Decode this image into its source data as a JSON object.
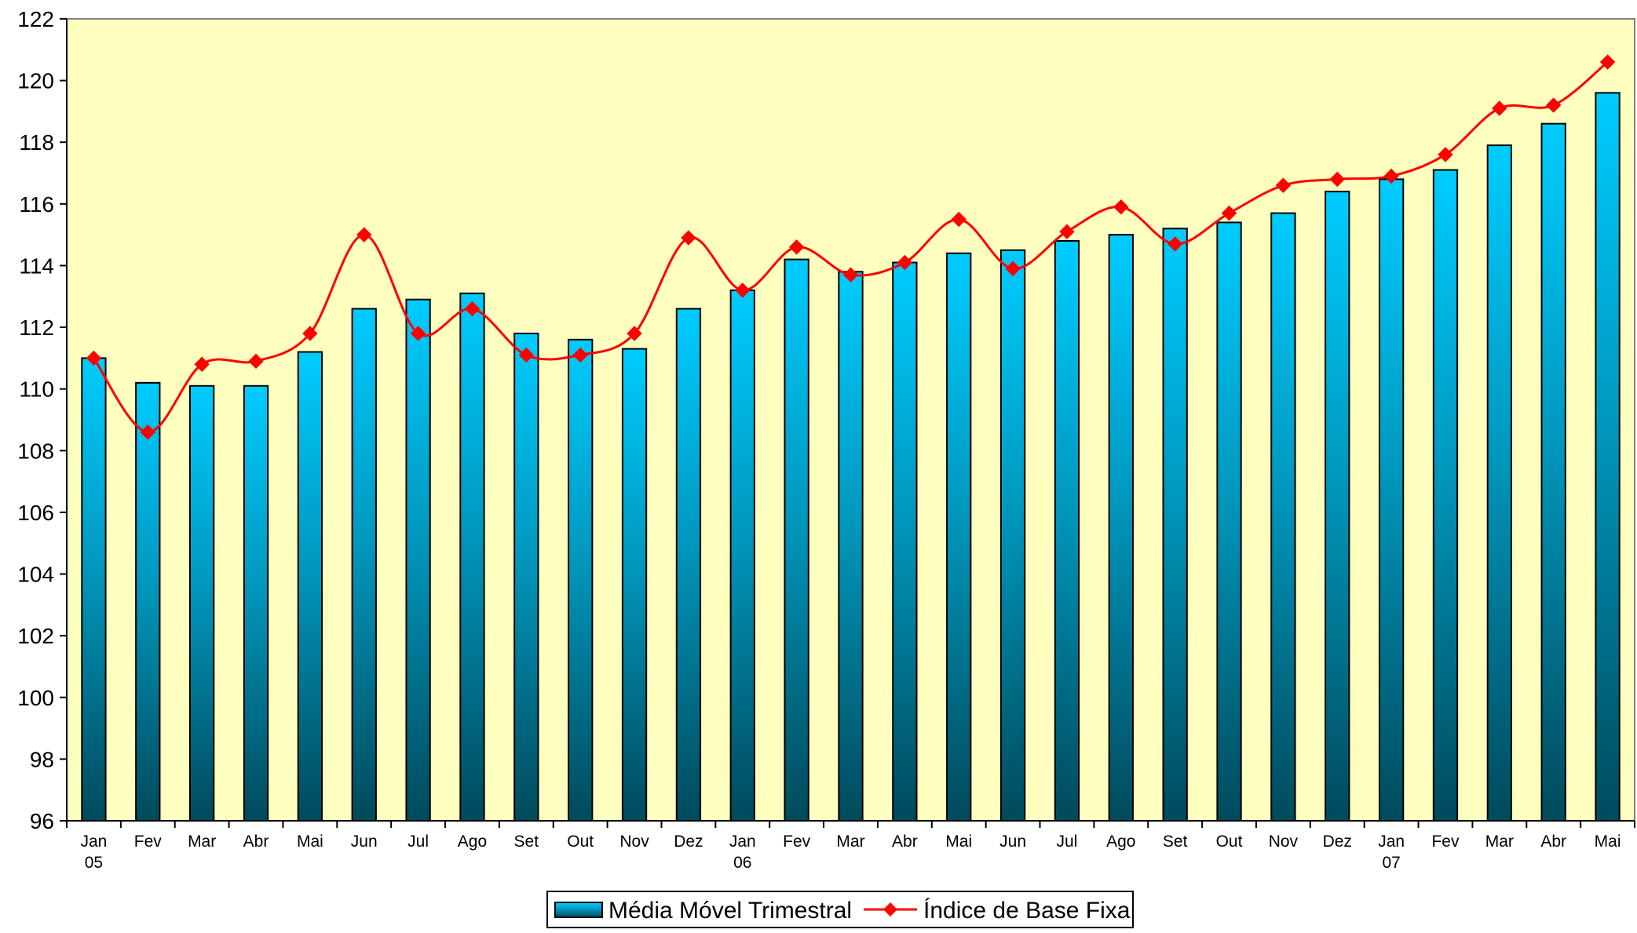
{
  "chart_data": {
    "type": "bar",
    "categories": [
      "Jan",
      "Fev",
      "Mar",
      "Abr",
      "Mai",
      "Jun",
      "Jul",
      "Ago",
      "Set",
      "Out",
      "Nov",
      "Dez",
      "Jan",
      "Fev",
      "Mar",
      "Abr",
      "Mai",
      "Jun",
      "Jul",
      "Ago",
      "Set",
      "Out",
      "Nov",
      "Dez",
      "Jan",
      "Fev",
      "Mar",
      "Abr",
      "Mai"
    ],
    "year_labels": [
      "05",
      "",
      "",
      "",
      "",
      "",
      "",
      "",
      "",
      "",
      "",
      "",
      "06",
      "",
      "",
      "",
      "",
      "",
      "",
      "",
      "",
      "",
      "",
      "",
      "07",
      "",
      "",
      "",
      ""
    ],
    "series": [
      {
        "name": "Média Móvel Trimestral",
        "type": "bar",
        "values": [
          111.0,
          110.2,
          110.1,
          110.1,
          111.2,
          112.6,
          112.9,
          113.1,
          111.8,
          111.6,
          111.3,
          112.6,
          113.2,
          114.2,
          113.8,
          114.1,
          114.4,
          114.5,
          114.8,
          115.0,
          115.2,
          115.4,
          115.7,
          116.4,
          116.8,
          117.1,
          117.9,
          118.6,
          119.6
        ]
      },
      {
        "name": "Índice de Base Fixa",
        "type": "line",
        "values": [
          111.0,
          108.6,
          110.8,
          110.9,
          111.8,
          115.0,
          111.8,
          112.6,
          111.1,
          111.1,
          111.8,
          114.9,
          113.2,
          114.6,
          113.7,
          114.1,
          115.5,
          113.9,
          115.1,
          115.9,
          114.7,
          115.7,
          116.6,
          116.8,
          116.9,
          117.6,
          119.1,
          119.2,
          120.6
        ]
      }
    ],
    "ylim": [
      96,
      122
    ],
    "yticks": [
      96,
      98,
      100,
      102,
      104,
      106,
      108,
      110,
      112,
      114,
      116,
      118,
      120,
      122
    ],
    "legend_position": "bottom-center",
    "colors": {
      "plot_background": "#FFFFC0",
      "bar_top": "#00CCFF",
      "bar_bottom": "#004A5C",
      "line": "#FF0000",
      "marker": "#FF0000"
    },
    "grid": false
  }
}
